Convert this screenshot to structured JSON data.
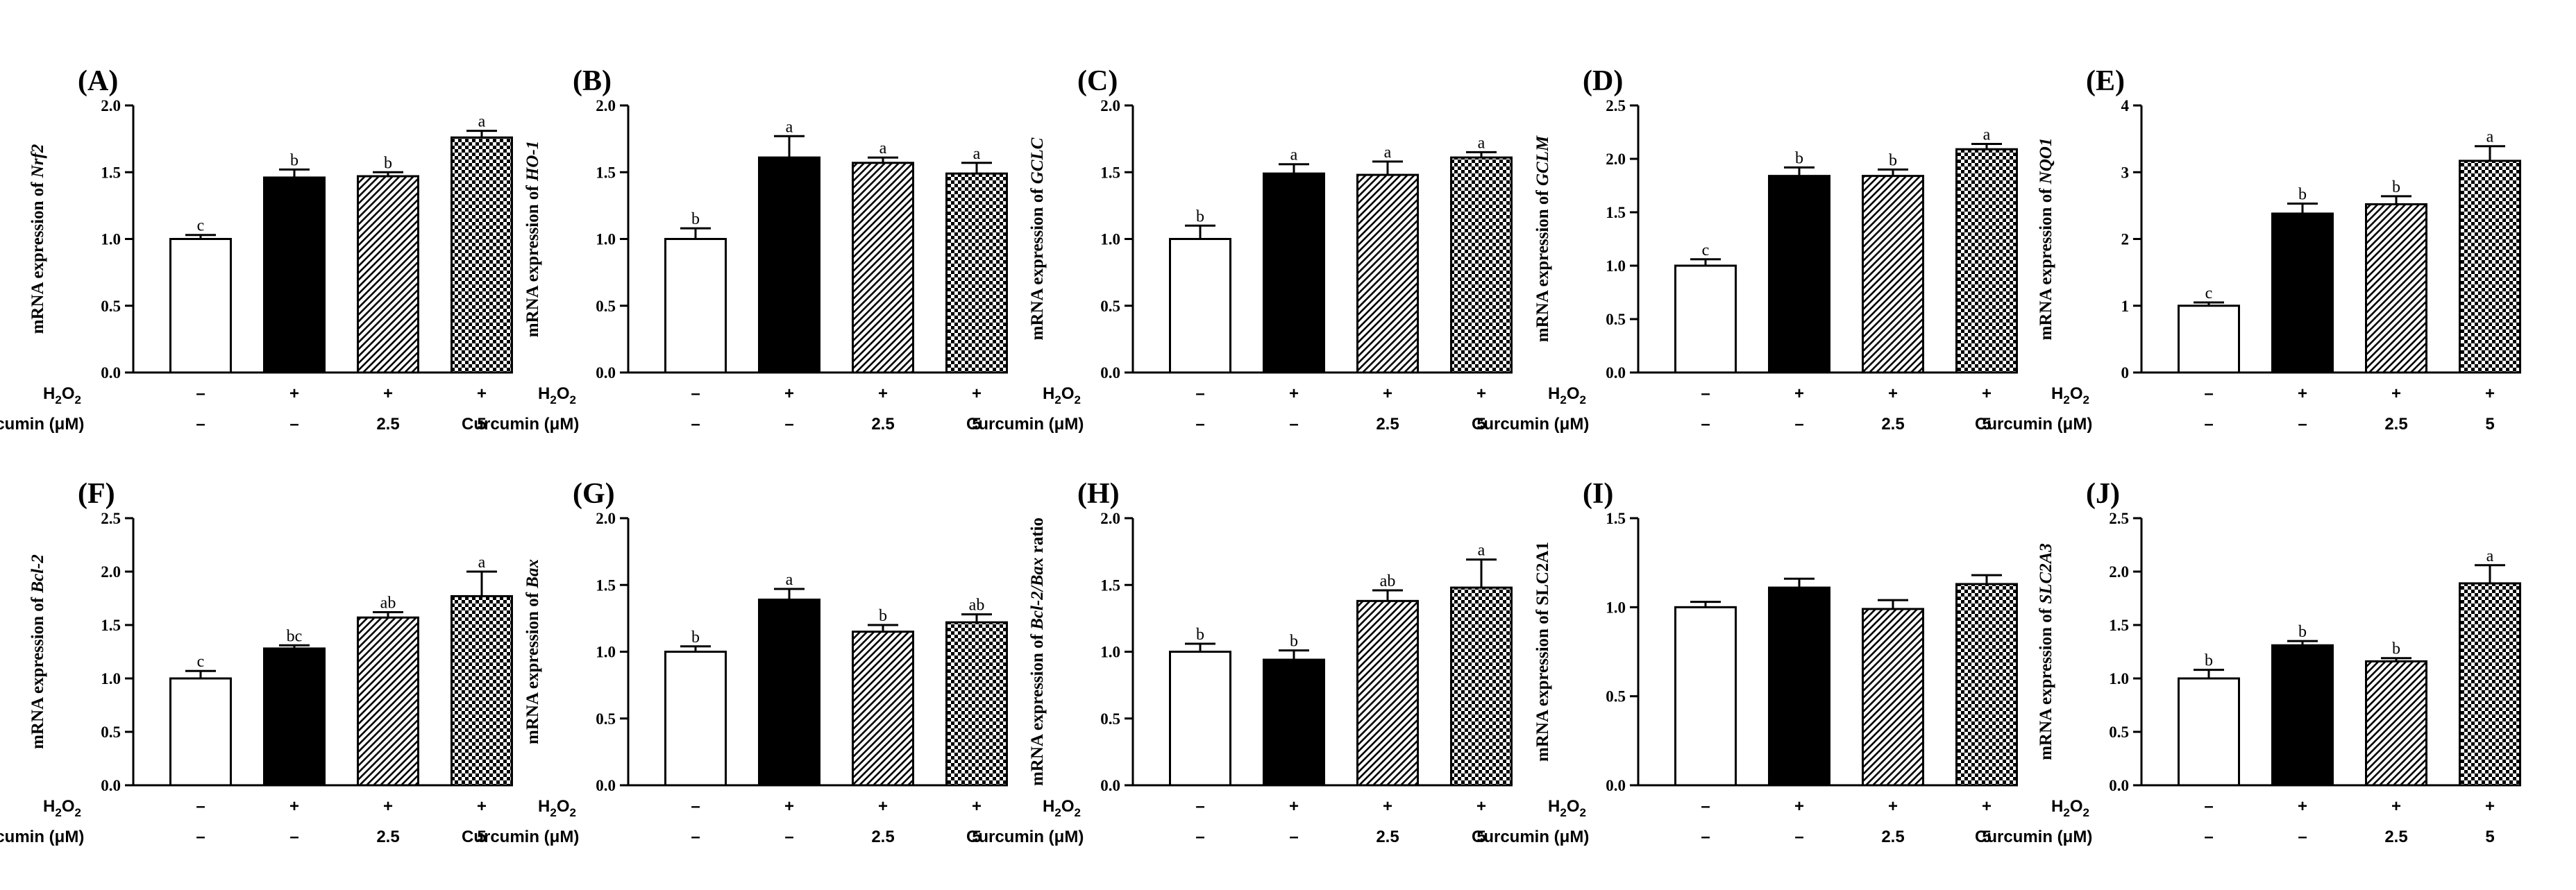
{
  "figure": {
    "treatment_rows": [
      {
        "label": "H2O2",
        "values": [
          "–",
          "+",
          "+",
          "+"
        ]
      },
      {
        "label": "Curcumin (μM)",
        "values": [
          "–",
          "–",
          "2.5",
          "5"
        ]
      }
    ],
    "fills": [
      "open",
      "black",
      "diagonal-hatch",
      "checkerboard"
    ]
  },
  "chart_data": [
    {
      "panel": "(A)",
      "type": "bar",
      "ylabel_prefix": "mRNA expression of ",
      "ylabel_gene": "Nrf2",
      "ylabel_suffix": "",
      "gene_italic": true,
      "ylim": [
        0,
        2.0
      ],
      "yticks": [
        "0.0",
        "0.5",
        "1.0",
        "1.5",
        "2.0"
      ],
      "values": [
        1.0,
        1.46,
        1.47,
        1.76
      ],
      "errors": [
        0.03,
        0.06,
        0.03,
        0.05
      ],
      "letters": [
        "c",
        "b",
        "b",
        "a"
      ]
    },
    {
      "panel": "(B)",
      "type": "bar",
      "ylabel_prefix": "mRNA expression of ",
      "ylabel_gene": "HO-1",
      "ylabel_suffix": "",
      "gene_italic": true,
      "ylim": [
        0,
        2.0
      ],
      "yticks": [
        "0.0",
        "0.5",
        "1.0",
        "1.5",
        "2.0"
      ],
      "values": [
        1.0,
        1.61,
        1.57,
        1.49
      ],
      "errors": [
        0.08,
        0.16,
        0.04,
        0.08
      ],
      "letters": [
        "b",
        "a",
        "a",
        "a"
      ]
    },
    {
      "panel": "(C)",
      "type": "bar",
      "ylabel_prefix": "mRNA expression of ",
      "ylabel_gene": "GCLC",
      "ylabel_suffix": "",
      "gene_italic": true,
      "ylim": [
        0,
        2.0
      ],
      "yticks": [
        "0.0",
        "0.5",
        "1.0",
        "1.5",
        "2.0"
      ],
      "values": [
        1.0,
        1.49,
        1.48,
        1.61
      ],
      "errors": [
        0.1,
        0.07,
        0.1,
        0.04
      ],
      "letters": [
        "b",
        "a",
        "a",
        "a"
      ]
    },
    {
      "panel": "(D)",
      "type": "bar",
      "ylabel_prefix": "mRNA expression of ",
      "ylabel_gene": "GCLM",
      "ylabel_suffix": "",
      "gene_italic": true,
      "ylim": [
        0,
        2.5
      ],
      "yticks": [
        "0.0",
        "0.5",
        "1.0",
        "1.5",
        "2.0",
        "2.5"
      ],
      "values": [
        1.0,
        1.84,
        1.84,
        2.09
      ],
      "errors": [
        0.06,
        0.08,
        0.06,
        0.05
      ],
      "letters": [
        "c",
        "b",
        "b",
        "a"
      ]
    },
    {
      "panel": "(E)",
      "type": "bar",
      "ylabel_prefix": "mRNA expression of ",
      "ylabel_gene": "NQO1",
      "ylabel_suffix": "",
      "gene_italic": true,
      "ylim": [
        0,
        4
      ],
      "yticks": [
        "0",
        "1",
        "2",
        "3",
        "4"
      ],
      "values": [
        1.0,
        2.38,
        2.52,
        3.17
      ],
      "errors": [
        0.05,
        0.15,
        0.12,
        0.22
      ],
      "letters": [
        "c",
        "b",
        "b",
        "a"
      ]
    },
    {
      "panel": "(F)",
      "type": "bar",
      "ylabel_prefix": "mRNA expression of ",
      "ylabel_gene": "Bcl-2",
      "ylabel_suffix": "",
      "gene_italic": true,
      "ylim": [
        0,
        2.5
      ],
      "yticks": [
        "0.0",
        "0.5",
        "1.0",
        "1.5",
        "2.0",
        "2.5"
      ],
      "values": [
        1.0,
        1.28,
        1.57,
        1.77
      ],
      "errors": [
        0.07,
        0.03,
        0.05,
        0.23
      ],
      "letters": [
        "c",
        "bc",
        "ab",
        "a"
      ]
    },
    {
      "panel": "(G)",
      "type": "bar",
      "ylabel_prefix": "mRNA expression of ",
      "ylabel_gene": "Bax",
      "ylabel_suffix": "",
      "gene_italic": true,
      "ylim": [
        0,
        2.0
      ],
      "yticks": [
        "0.0",
        "0.5",
        "1.0",
        "1.5",
        "2.0"
      ],
      "values": [
        1.0,
        1.39,
        1.15,
        1.22
      ],
      "errors": [
        0.04,
        0.08,
        0.05,
        0.06
      ],
      "letters": [
        "b",
        "a",
        "b",
        "ab"
      ]
    },
    {
      "panel": "(H)",
      "type": "bar",
      "ylabel_prefix": "mRNA expression of ",
      "ylabel_gene": "Bcl-2/Bax",
      "ylabel_suffix": " ratio",
      "gene_italic": true,
      "ylim": [
        0,
        2.0
      ],
      "yticks": [
        "0.0",
        "0.5",
        "1.0",
        "1.5",
        "2.0"
      ],
      "values": [
        1.0,
        0.94,
        1.38,
        1.48
      ],
      "errors": [
        0.06,
        0.07,
        0.08,
        0.21
      ],
      "letters": [
        "b",
        "b",
        "ab",
        "a"
      ]
    },
    {
      "panel": "(I)",
      "type": "bar",
      "ylabel_prefix": "mRNA expression of ",
      "ylabel_gene": "SLC2A1",
      "ylabel_suffix": "",
      "gene_italic": false,
      "ylim": [
        0,
        1.5
      ],
      "yticks": [
        "0.0",
        "0.5",
        "1.0",
        "1.5"
      ],
      "values": [
        1.0,
        1.11,
        0.99,
        1.13
      ],
      "errors": [
        0.03,
        0.05,
        0.05,
        0.05
      ],
      "letters": [
        "",
        "",
        "",
        ""
      ]
    },
    {
      "panel": "(J)",
      "type": "bar",
      "ylabel_prefix": "mRNA expression of ",
      "ylabel_gene": "SLC2A3",
      "ylabel_suffix": "",
      "gene_italic": true,
      "ylim": [
        0,
        2.5
      ],
      "yticks": [
        "0.0",
        "0.5",
        "1.0",
        "1.5",
        "2.0",
        "2.5"
      ],
      "values": [
        1.0,
        1.31,
        1.16,
        1.89
      ],
      "errors": [
        0.08,
        0.04,
        0.03,
        0.17
      ],
      "letters": [
        "b",
        "b",
        "b",
        "a"
      ]
    }
  ]
}
